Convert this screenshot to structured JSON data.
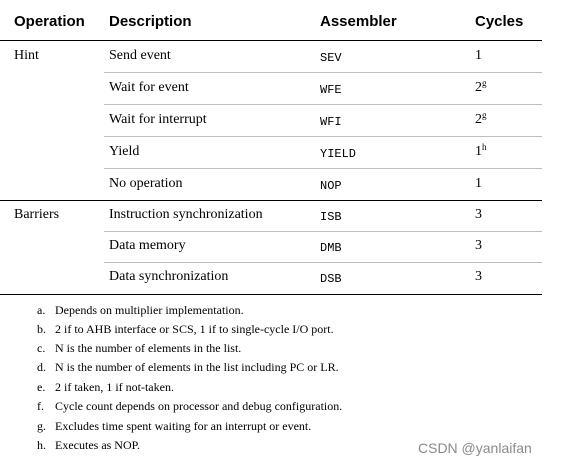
{
  "table": {
    "headers": {
      "operation": "Operation",
      "description": "Description",
      "assembler": "Assembler",
      "cycles": "Cycles"
    },
    "groups": [
      {
        "operation": "Hint",
        "rows": [
          {
            "description": "Send event",
            "assembler": "SEV",
            "cycles": "1",
            "note": ""
          },
          {
            "description": "Wait for event",
            "assembler": "WFE",
            "cycles": "2",
            "note": "g"
          },
          {
            "description": "Wait for interrupt",
            "assembler": "WFI",
            "cycles": "2",
            "note": "g"
          },
          {
            "description": "Yield",
            "assembler": "YIELD",
            "cycles": "1",
            "note": "h"
          },
          {
            "description": "No operation",
            "assembler": "NOP",
            "cycles": "1",
            "note": ""
          }
        ]
      },
      {
        "operation": "Barriers",
        "rows": [
          {
            "description": "Instruction synchronization",
            "assembler": "ISB",
            "cycles": "3",
            "note": ""
          },
          {
            "description": "Data memory",
            "assembler": "DMB",
            "cycles": "3",
            "note": ""
          },
          {
            "description": "Data synchronization",
            "assembler": "DSB",
            "cycles": "3",
            "note": ""
          }
        ]
      }
    ]
  },
  "footnotes": [
    {
      "letter": "a.",
      "text": "Depends on multiplier implementation."
    },
    {
      "letter": "b.",
      "text": "2 if to AHB interface or SCS, 1 if to single-cycle I/O port."
    },
    {
      "letter": "c.",
      "text": "N is the number of elements in the list."
    },
    {
      "letter": "d.",
      "text": "N is the number of elements in the list including PC or LR."
    },
    {
      "letter": "e.",
      "text": "2 if taken, 1 if not-taken."
    },
    {
      "letter": "f.",
      "text": "Cycle count depends on processor and debug configuration."
    },
    {
      "letter": "g.",
      "text": "Excludes time spent waiting for an interrupt or event."
    },
    {
      "letter": "h.",
      "text": "Executes as NOP."
    }
  ],
  "watermark": "CSDN @yanlaifan"
}
